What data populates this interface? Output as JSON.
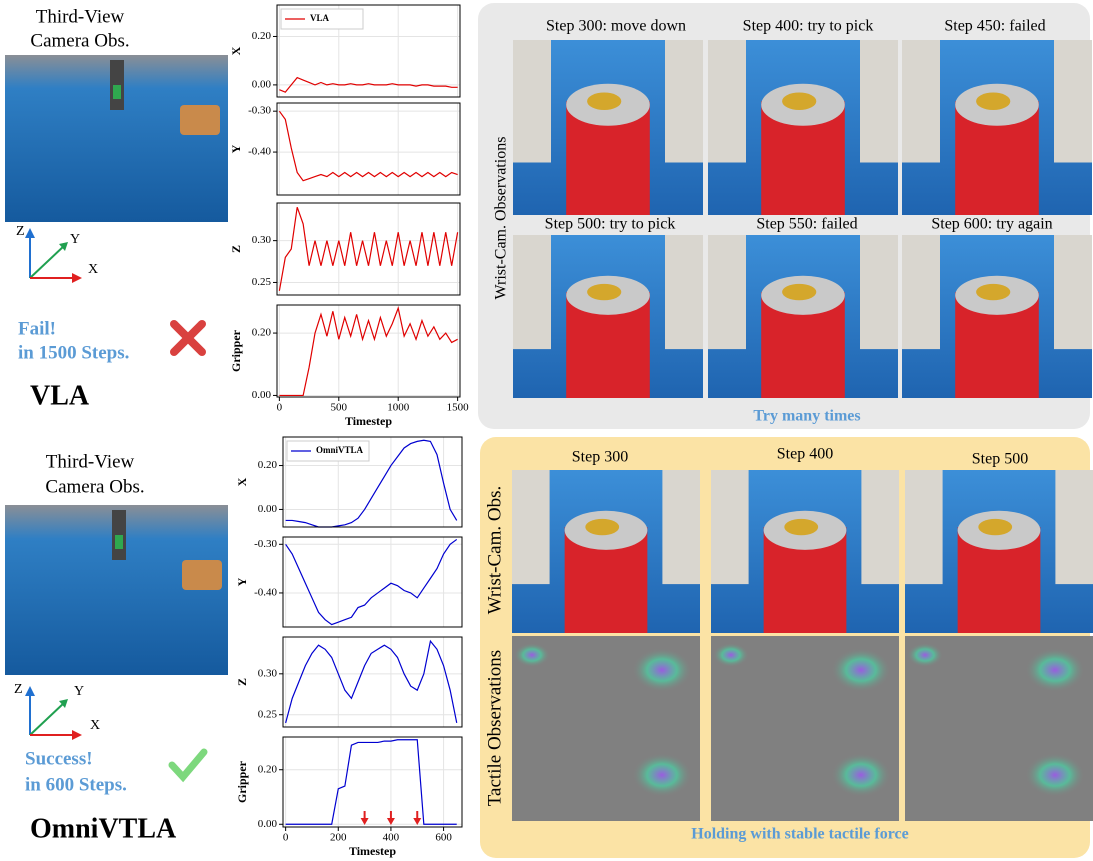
{
  "vla_panel": {
    "camera_label": [
      "Third-View",
      "Camera Obs."
    ],
    "axes": {
      "z": "Z",
      "y": "Y",
      "x": "X"
    },
    "result": [
      "Fail!",
      "in 1500 Steps."
    ],
    "model": "VLA"
  },
  "omnivtla_panel": {
    "camera_label": [
      "Third-View",
      "Camera Obs."
    ],
    "axes": {
      "z": "Z",
      "y": "Y",
      "x": "X"
    },
    "result": [
      "Success!",
      "in 600 Steps."
    ],
    "model": "OmniVTLA"
  },
  "chart_data": [
    {
      "type": "line",
      "name": "VLA",
      "color": "#e00000",
      "xlabel": "Timestep",
      "grid": true,
      "x": [
        0,
        50,
        100,
        150,
        200,
        250,
        300,
        350,
        400,
        450,
        500,
        550,
        600,
        650,
        700,
        750,
        800,
        850,
        900,
        950,
        1000,
        1050,
        1100,
        1150,
        1200,
        1250,
        1300,
        1350,
        1400,
        1450,
        1500
      ],
      "xlim": [
        -20,
        1520
      ],
      "xticks": [
        0,
        500,
        1000,
        1500
      ],
      "panels": [
        {
          "ylabel": "X",
          "ylim": [
            -0.05,
            0.33
          ],
          "yticks": [
            {
              "value": 0,
              "label": "0.00"
            },
            {
              "value": 0.2,
              "label": "0.20"
            }
          ],
          "values": [
            -0.02,
            -0.03,
            0.0,
            0.03,
            0.02,
            0.01,
            0.0,
            0.01,
            0.0,
            0.005,
            0.0,
            0.0,
            0.005,
            0.0,
            0.0,
            0.005,
            0.0,
            0.0,
            0.0,
            0.005,
            0.0,
            0.0,
            0.0,
            -0.005,
            0.0,
            0.0,
            -0.005,
            -0.005,
            -0.005,
            -0.01,
            -0.01
          ]
        },
        {
          "ylabel": "Y",
          "ylim": [
            -0.505,
            -0.28
          ],
          "yticks": [
            {
              "value": -0.3,
              "label": "-0.30"
            },
            {
              "value": -0.4,
              "label": "-0.40"
            }
          ],
          "values": [
            -0.3,
            -0.32,
            -0.39,
            -0.45,
            -0.47,
            -0.465,
            -0.46,
            -0.455,
            -0.46,
            -0.45,
            -0.46,
            -0.45,
            -0.46,
            -0.45,
            -0.46,
            -0.45,
            -0.46,
            -0.45,
            -0.46,
            -0.45,
            -0.46,
            -0.45,
            -0.46,
            -0.45,
            -0.46,
            -0.45,
            -0.46,
            -0.45,
            -0.46,
            -0.45,
            -0.455
          ]
        },
        {
          "ylabel": "Z",
          "ylim": [
            0.235,
            0.345
          ],
          "yticks": [
            0.25,
            {
              "value": 0.3,
              "label": "0.30"
            }
          ],
          "values": [
            0.24,
            0.28,
            0.29,
            0.34,
            0.32,
            0.27,
            0.3,
            0.27,
            0.3,
            0.27,
            0.3,
            0.27,
            0.31,
            0.27,
            0.3,
            0.27,
            0.31,
            0.27,
            0.3,
            0.27,
            0.31,
            0.27,
            0.3,
            0.27,
            0.31,
            0.27,
            0.31,
            0.27,
            0.31,
            0.27,
            0.31
          ]
        },
        {
          "ylabel": "Gripper",
          "ylim": [
            -0.005,
            0.29
          ],
          "yticks": [
            {
              "value": 0,
              "label": "0.00"
            },
            {
              "value": 0.2,
              "label": "0.20"
            }
          ],
          "values": [
            0.0,
            0.0,
            0.0,
            0.0,
            0.0,
            0.09,
            0.2,
            0.26,
            0.19,
            0.27,
            0.18,
            0.25,
            0.19,
            0.26,
            0.18,
            0.24,
            0.18,
            0.25,
            0.19,
            0.23,
            0.28,
            0.19,
            0.23,
            0.18,
            0.24,
            0.19,
            0.22,
            0.18,
            0.2,
            0.17,
            0.18
          ]
        }
      ]
    },
    {
      "type": "line",
      "name": "OmniVTLA",
      "color": "#0000d0",
      "xlabel": "Timestep",
      "grid": true,
      "x": [
        0,
        25,
        50,
        75,
        100,
        125,
        150,
        175,
        200,
        225,
        250,
        275,
        300,
        325,
        350,
        375,
        400,
        425,
        450,
        475,
        500,
        525,
        550,
        575,
        600,
        625,
        650
      ],
      "xlim": [
        -10,
        670
      ],
      "xticks": [
        0,
        200,
        400,
        600
      ],
      "arrows_x": [
        300,
        400,
        500
      ],
      "panels": [
        {
          "ylabel": "X",
          "ylim": [
            -0.08,
            0.33
          ],
          "yticks": [
            {
              "value": 0,
              "label": "0.00"
            },
            {
              "value": 0.2,
              "label": "0.20"
            }
          ],
          "values": [
            -0.05,
            -0.05,
            -0.055,
            -0.06,
            -0.07,
            -0.08,
            -0.08,
            -0.08,
            -0.075,
            -0.07,
            -0.06,
            -0.04,
            0.0,
            0.05,
            0.1,
            0.15,
            0.2,
            0.24,
            0.28,
            0.3,
            0.31,
            0.315,
            0.31,
            0.25,
            0.12,
            0.0,
            -0.05
          ]
        },
        {
          "ylabel": "Y",
          "ylim": [
            -0.47,
            -0.285
          ],
          "yticks": [
            {
              "value": -0.3,
              "label": "-0.30"
            },
            {
              "value": -0.4,
              "label": "-0.40"
            }
          ],
          "values": [
            -0.3,
            -0.32,
            -0.35,
            -0.38,
            -0.41,
            -0.44,
            -0.455,
            -0.465,
            -0.46,
            -0.455,
            -0.45,
            -0.43,
            -0.425,
            -0.41,
            -0.4,
            -0.39,
            -0.38,
            -0.385,
            -0.395,
            -0.4,
            -0.41,
            -0.39,
            -0.37,
            -0.35,
            -0.32,
            -0.3,
            -0.29
          ]
        },
        {
          "ylabel": "Z",
          "ylim": [
            0.235,
            0.345
          ],
          "yticks": [
            0.25,
            {
              "value": 0.3,
              "label": "0.30"
            }
          ],
          "values": [
            0.24,
            0.27,
            0.29,
            0.31,
            0.325,
            0.335,
            0.33,
            0.32,
            0.3,
            0.28,
            0.27,
            0.29,
            0.31,
            0.325,
            0.33,
            0.335,
            0.33,
            0.32,
            0.3,
            0.285,
            0.28,
            0.3,
            0.34,
            0.33,
            0.31,
            0.28,
            0.24
          ]
        },
        {
          "ylabel": "Gripper",
          "ylim": [
            -0.01,
            0.32
          ],
          "yticks": [
            {
              "value": 0,
              "label": "0.00"
            },
            {
              "value": 0.2,
              "label": "0.20"
            }
          ],
          "values": [
            0,
            0,
            0,
            0,
            0,
            0,
            0,
            0,
            0.13,
            0.14,
            0.29,
            0.3,
            0.3,
            0.3,
            0.3,
            0.305,
            0.305,
            0.31,
            0.31,
            0.31,
            0.31,
            0,
            0,
            0,
            0,
            0,
            0
          ]
        }
      ]
    }
  ],
  "vla_observations": {
    "side_label": "Wrist-Cam. Observations",
    "captions": [
      "Step 300: move down",
      "Step 400: try to pick",
      "Step 450: failed",
      "Step 500: try to pick",
      "Step 550: failed",
      "Step 600: try again"
    ],
    "footer": "Try many times"
  },
  "omnivtla_observations": {
    "captions": [
      "Step 300",
      "Step 400",
      "Step 500"
    ],
    "wrist_label": "Wrist-Cam. Obs.",
    "tactile_label": "Tactile Observations",
    "footer": "Holding with stable tactile force"
  }
}
